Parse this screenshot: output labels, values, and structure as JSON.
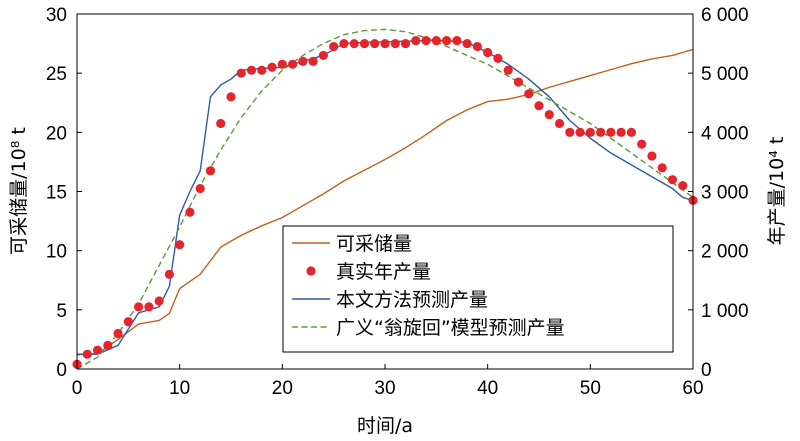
{
  "chart_data": {
    "type": "line",
    "xlabel": "时间/a",
    "ylabel_left": "可采储量/10⁸ t",
    "ylabel_right": "年产量/10⁴ t",
    "xlim": [
      0,
      60
    ],
    "ylim_left": [
      0,
      30
    ],
    "ylim_right": [
      0,
      6000
    ],
    "x_ticks": [
      0,
      10,
      20,
      30,
      40,
      50,
      60
    ],
    "y_left_ticks": [
      0,
      5,
      10,
      15,
      20,
      25,
      30
    ],
    "y_right_ticks": [
      0,
      1000,
      2000,
      3000,
      4000,
      5000,
      6000
    ],
    "y_right_tick_labels": [
      "0",
      "1 000",
      "2 000",
      "3 000",
      "4 000",
      "5 000",
      "6 000"
    ],
    "grid": false,
    "legend_position": "bottom-right-center",
    "colors": {
      "reserves": "#c0621e",
      "actual": "#e4262c",
      "method": "#2f5aa8",
      "weng": "#5a9a3c"
    },
    "series": [
      {
        "name": "可采储量",
        "axis": "left",
        "style": "line",
        "x": [
          0,
          2,
          4,
          6,
          8,
          9,
          10,
          12,
          14,
          16,
          18,
          20,
          22,
          24,
          26,
          28,
          30,
          32,
          34,
          36,
          38,
          40,
          42,
          44,
          46,
          48,
          50,
          52,
          54,
          56,
          58,
          60
        ],
        "y": [
          1.2,
          1.3,
          2.5,
          3.8,
          4.1,
          4.7,
          6.8,
          8.0,
          10.3,
          11.3,
          12.1,
          12.8,
          13.8,
          14.8,
          15.9,
          16.8,
          17.7,
          18.7,
          19.8,
          21.0,
          21.9,
          22.6,
          22.8,
          23.2,
          23.8,
          24.3,
          24.8,
          25.3,
          25.8,
          26.2,
          26.5,
          27.0
        ]
      },
      {
        "name": "真实年产量",
        "axis": "right",
        "style": "scatter",
        "x": [
          0,
          1,
          2,
          3,
          4,
          5,
          6,
          7,
          8,
          9,
          10,
          11,
          12,
          13,
          14,
          15,
          16,
          17,
          18,
          19,
          20,
          21,
          22,
          23,
          24,
          25,
          26,
          27,
          28,
          29,
          30,
          31,
          32,
          33,
          34,
          35,
          36,
          37,
          38,
          39,
          40,
          41,
          42,
          43,
          44,
          45,
          46,
          47,
          48,
          49,
          50,
          51,
          52,
          53,
          54,
          55,
          56,
          57,
          58,
          59,
          60
        ],
        "y": [
          80,
          250,
          320,
          400,
          600,
          800,
          1050,
          1050,
          1150,
          1600,
          2100,
          2650,
          3050,
          3350,
          4150,
          4600,
          5000,
          5050,
          5050,
          5100,
          5150,
          5150,
          5200,
          5200,
          5300,
          5450,
          5500,
          5500,
          5500,
          5500,
          5500,
          5500,
          5500,
          5550,
          5550,
          5550,
          5550,
          5550,
          5500,
          5450,
          5350,
          5250,
          5050,
          4850,
          4650,
          4450,
          4300,
          4150,
          4000,
          4000,
          4000,
          4000,
          4000,
          4000,
          4000,
          3800,
          3600,
          3400,
          3200,
          3100,
          2850
        ]
      },
      {
        "name": "本文方法预测产量",
        "axis": "right",
        "style": "line",
        "x": [
          0,
          2,
          4,
          6,
          8,
          9,
          10,
          11,
          12,
          13,
          14,
          15,
          16,
          18,
          20,
          22,
          24,
          26,
          28,
          30,
          32,
          34,
          36,
          38,
          40,
          42,
          44,
          46,
          48,
          50,
          52,
          54,
          56,
          58,
          59,
          60
        ],
        "y": [
          250,
          250,
          400,
          950,
          1050,
          1400,
          2600,
          3000,
          3350,
          4600,
          4800,
          4900,
          5050,
          5080,
          5100,
          5200,
          5300,
          5500,
          5520,
          5530,
          5540,
          5550,
          5550,
          5520,
          5350,
          5150,
          4900,
          4600,
          4200,
          3900,
          3650,
          3450,
          3250,
          3050,
          2900,
          2850
        ]
      },
      {
        "name": "广义“翁旋回”模型预测产量",
        "axis": "right",
        "style": "dashed",
        "x": [
          0,
          2,
          4,
          6,
          8,
          10,
          12,
          14,
          16,
          18,
          20,
          22,
          24,
          26,
          28,
          30,
          32,
          34,
          36,
          38,
          40,
          42,
          44,
          46,
          48,
          50,
          52,
          54,
          56,
          58,
          60
        ],
        "y": [
          0,
          200,
          600,
          1100,
          1750,
          2400,
          3100,
          3700,
          4250,
          4700,
          5050,
          5300,
          5500,
          5650,
          5720,
          5740,
          5700,
          5600,
          5450,
          5300,
          5150,
          4950,
          4750,
          4550,
          4350,
          4150,
          3900,
          3650,
          3400,
          3150,
          2900
        ]
      }
    ],
    "legend": [
      {
        "label": "可采储量",
        "symbol": "line",
        "color_key": "reserves"
      },
      {
        "label": "真实年产量",
        "symbol": "dot",
        "color_key": "actual"
      },
      {
        "label": "本文方法预测产量",
        "symbol": "line",
        "color_key": "method"
      },
      {
        "label": "广义“翁旋回”模型预测产量",
        "symbol": "dashed",
        "color_key": "weng"
      }
    ]
  }
}
